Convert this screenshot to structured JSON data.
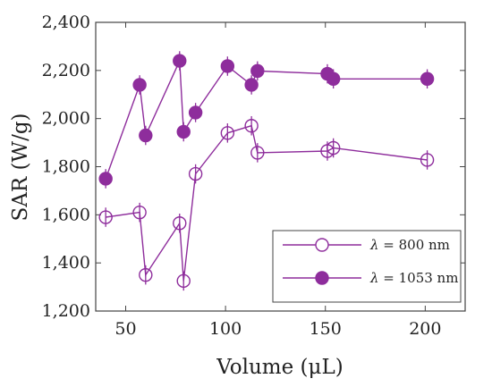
{
  "chart_data": {
    "type": "scatter",
    "title": "",
    "xlabel": "Volume (μL)",
    "ylabel": "SAR (W/g)",
    "xlim": [
      35,
      220
    ],
    "ylim": [
      1200,
      2400
    ],
    "xticks": [
      50,
      100,
      150,
      200
    ],
    "yticks": [
      1200,
      1400,
      1600,
      1800,
      2000,
      2200,
      2400
    ],
    "xtick_labels": [
      "50",
      "100",
      "150",
      "200"
    ],
    "ytick_labels": [
      "1,200",
      "1,400",
      "1,600",
      "1,800",
      "2,000",
      "2,200",
      "2,400"
    ],
    "grid": false,
    "legend_position": "lower-right",
    "error_bar": 40,
    "series": [
      {
        "name": "λ = 800 nm",
        "legend_symbol": "λ",
        "legend_rest": " = 800 nm",
        "marker": "open-circle",
        "color": "#8e2d9c",
        "x": [
          40,
          57,
          60,
          77,
          79,
          85,
          101,
          113,
          116,
          151,
          154,
          201
        ],
        "y": [
          1590,
          1610,
          1350,
          1565,
          1325,
          1770,
          1940,
          1970,
          1858,
          1865,
          1878,
          1828
        ]
      },
      {
        "name": "λ = 1053 nm",
        "legend_symbol": "λ",
        "legend_rest": " = 1053 nm",
        "marker": "filled-circle",
        "color": "#8e2d9c",
        "x": [
          40,
          57,
          60,
          77,
          79,
          85,
          101,
          113,
          116,
          151,
          154,
          201
        ],
        "y": [
          1750,
          2140,
          1930,
          2240,
          1945,
          2025,
          2218,
          2140,
          2198,
          2186,
          2165,
          2165
        ]
      }
    ]
  }
}
